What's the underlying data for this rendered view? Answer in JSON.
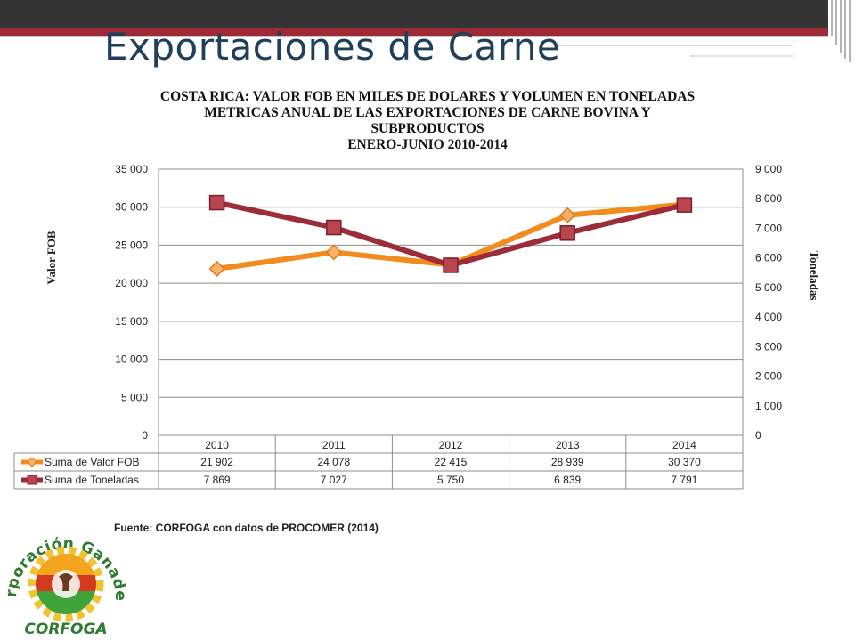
{
  "slide": {
    "title": "Exportaciones de Carne",
    "source": "Fuente: CORFOGA con datos de PROCOMER (2014)"
  },
  "logo": {
    "arc_text": "Corporación Ganadera",
    "bottom_text": "CORFOGA"
  },
  "colors": {
    "topbar": "#353535",
    "accent_red": "#9e2a36",
    "title_text": "#1f3f5a",
    "series_valor": "#f28c1e",
    "series_toneladas": "#9b2c38"
  },
  "chart_data": {
    "type": "line",
    "title_lines": [
      "COSTA RICA: VALOR FOB EN MILES DE DOLARES Y VOLUMEN EN TONELADAS",
      "METRICAS ANUAL DE LAS EXPORTACIONES DE CARNE BOVINA Y",
      "SUBPRODUCTOS",
      "ENERO-JUNIO 2010-2014"
    ],
    "categories": [
      "2010",
      "2011",
      "2012",
      "2013",
      "2014"
    ],
    "y_left": {
      "label": "Valor FOB",
      "min": 0,
      "max": 35000,
      "step": 5000,
      "ticks": [
        "0",
        "5 000",
        "10 000",
        "15 000",
        "20 000",
        "25 000",
        "30 000",
        "35 000"
      ]
    },
    "y_right": {
      "label": "Toneladas",
      "min": 0,
      "max": 9000,
      "step": 1000,
      "ticks": [
        "0",
        "1 000",
        "2 000",
        "3 000",
        "4 000",
        "5 000",
        "6 000",
        "7 000",
        "8 000",
        "9 000"
      ]
    },
    "grid": true,
    "data_table": true,
    "series": [
      {
        "name": "Suma de Valor FOB",
        "axis": "left",
        "marker": "diamond",
        "color": "#f28c1e",
        "values": [
          21902,
          24078,
          22415,
          28939,
          30370
        ],
        "labels": [
          "21 902",
          "24 078",
          "22 415",
          "28 939",
          "30 370"
        ]
      },
      {
        "name": "Suma de Toneladas",
        "axis": "right",
        "marker": "square",
        "color": "#9b2c38",
        "values": [
          7869,
          7027,
          5750,
          6839,
          7791
        ],
        "labels": [
          "7 869",
          "7 027",
          "5 750",
          "6 839",
          "7 791"
        ]
      }
    ]
  }
}
